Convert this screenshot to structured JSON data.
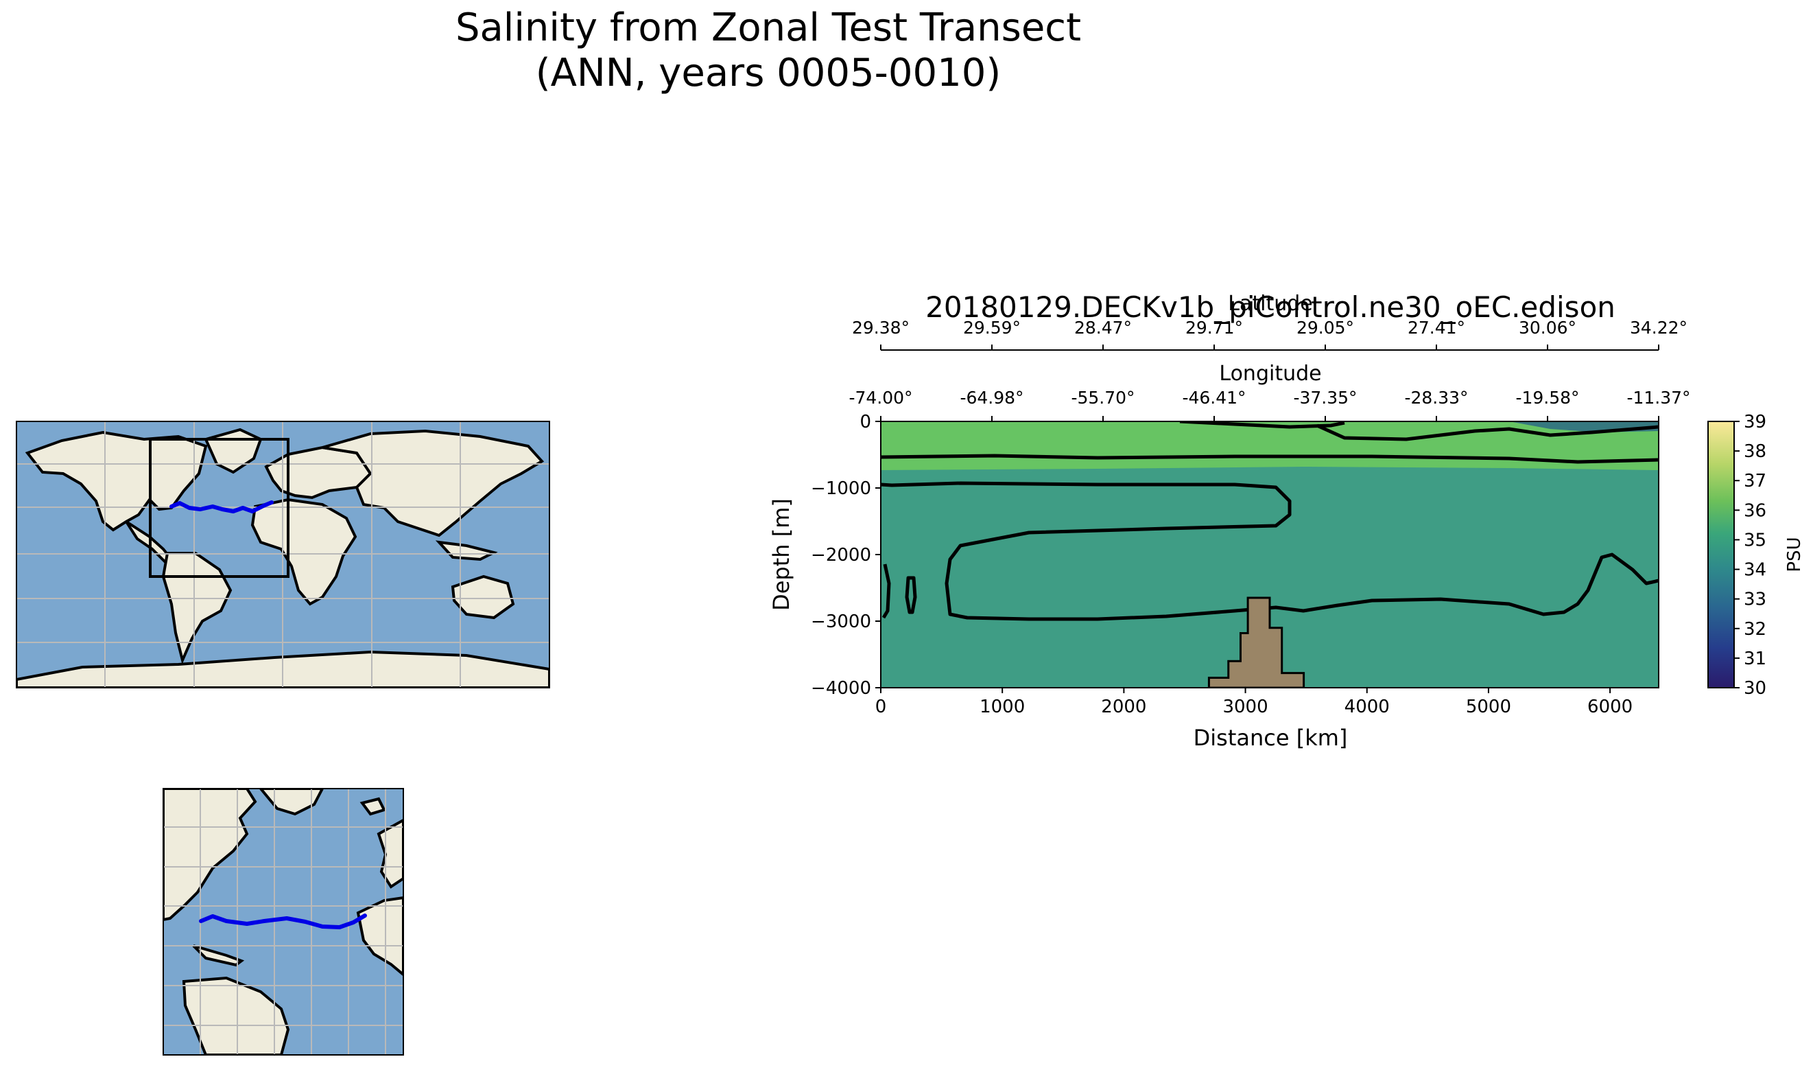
{
  "figure": {
    "title_line1": "Salinity from Zonal Test Transect",
    "title_line2": "(ANN, years 0005-0010)"
  },
  "chart_data": [
    {
      "type": "heatmap",
      "title": "20180129.DECKv1b_piControl.ne30_oEC.edison",
      "xlabel": "Distance [km]",
      "ylabel": "Depth [m]",
      "xlim": [
        0,
        6400
      ],
      "ylim": [
        -4000,
        0
      ],
      "x_ticks": [
        0,
        1000,
        2000,
        3000,
        4000,
        5000,
        6000
      ],
      "y_ticks": [
        0,
        -1000,
        -2000,
        -3000,
        -4000
      ],
      "y_tick_labels": [
        "0",
        "−1000",
        "−2000",
        "−3000",
        "−4000"
      ],
      "secondary_axis_1": {
        "label": "Longitude",
        "ticks": [
          "-74.00°",
          "-64.98°",
          "-55.70°",
          "-46.41°",
          "-37.35°",
          "-28.33°",
          "-19.58°",
          "-11.37°"
        ]
      },
      "secondary_axis_2": {
        "label": "Latitude",
        "ticks": [
          "29.38°",
          "29.59°",
          "28.47°",
          "29.71°",
          "29.05°",
          "27.41°",
          "30.06°",
          "34.22°"
        ]
      },
      "colorbar": {
        "label": "PSU",
        "range": [
          30,
          39
        ],
        "ticks": [
          30,
          31,
          32,
          33,
          34,
          35,
          36,
          37,
          38,
          39
        ],
        "colormap": "haline-like (navy to yellow)"
      },
      "fill": {
        "upper_layer_salinity_psu": 36.2,
        "deep_layer_salinity_psu": 35.0,
        "upper_layer_color": "#67c463",
        "deep_layer_color": "#3f9d85"
      },
      "contours": {
        "color": "#000000",
        "levels_psu": [
          35,
          36
        ]
      },
      "bathymetry": {
        "color": "#9a8566",
        "profile_km_m": [
          [
            2700,
            -4000
          ],
          [
            2700,
            -3850
          ],
          [
            2860,
            -3850
          ],
          [
            2860,
            -3600
          ],
          [
            2960,
            -3600
          ],
          [
            2960,
            -3180
          ],
          [
            3020,
            -3180
          ],
          [
            3020,
            -2650
          ],
          [
            3200,
            -2650
          ],
          [
            3200,
            -3100
          ],
          [
            3300,
            -3100
          ],
          [
            3300,
            -3780
          ],
          [
            3480,
            -3780
          ],
          [
            3480,
            -4000
          ]
        ]
      }
    }
  ],
  "maps": {
    "land_color": "#efecdc",
    "ocean_color": "#7ba7cf",
    "grid_color": "#b9b9b9",
    "transect_color": "#0000e6",
    "global_map": {
      "box_color": "#000000"
    },
    "regional_map": {}
  }
}
